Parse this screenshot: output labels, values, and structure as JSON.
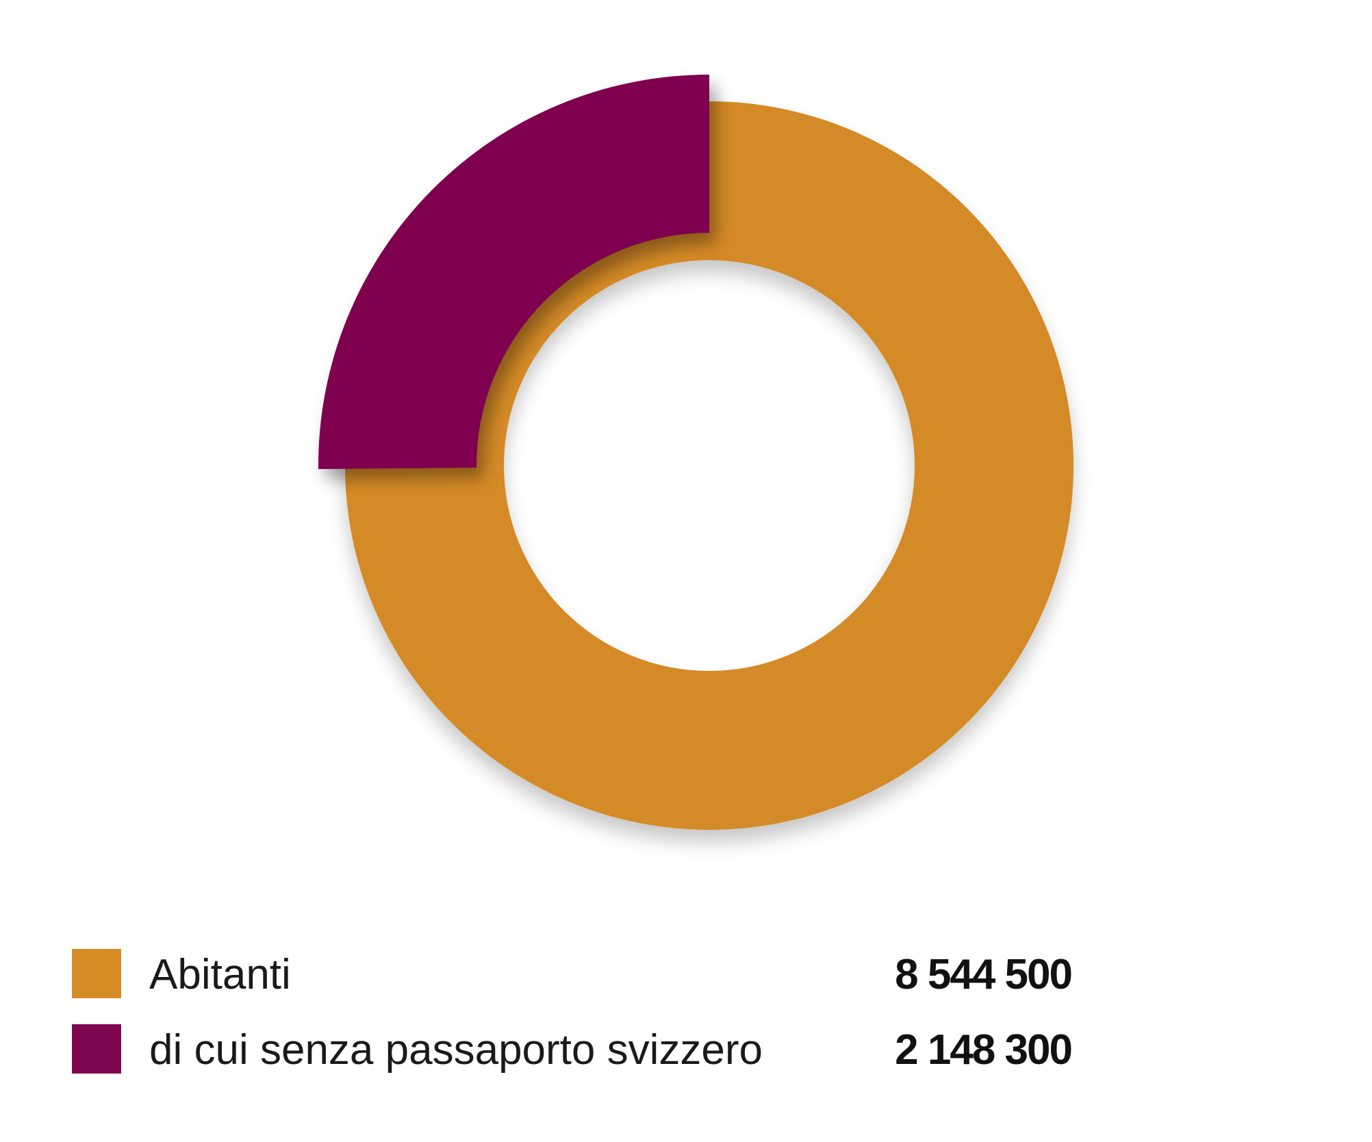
{
  "chart_data": {
    "type": "pie",
    "variant": "donut",
    "categories": [
      "Abitanti",
      "di cui senza passaporto svizzero"
    ],
    "values": [
      8544500,
      2148300
    ],
    "value_labels": [
      "8 544 500",
      "2 148 300"
    ],
    "colors": [
      "#d48a25",
      "#7e0650"
    ],
    "title": "",
    "legend_position": "bottom",
    "note": "second slice is a subset of the first, drawn as an outer highlighted arc starting at 12 o'clock going counter-clockwise"
  },
  "legend": {
    "items": [
      {
        "label": "Abitanti",
        "value": "8 544 500",
        "color": "#d48a25"
      },
      {
        "label": "di cui senza passaporto svizzero",
        "value": "2 148 300",
        "color": "#7e0650"
      }
    ]
  }
}
